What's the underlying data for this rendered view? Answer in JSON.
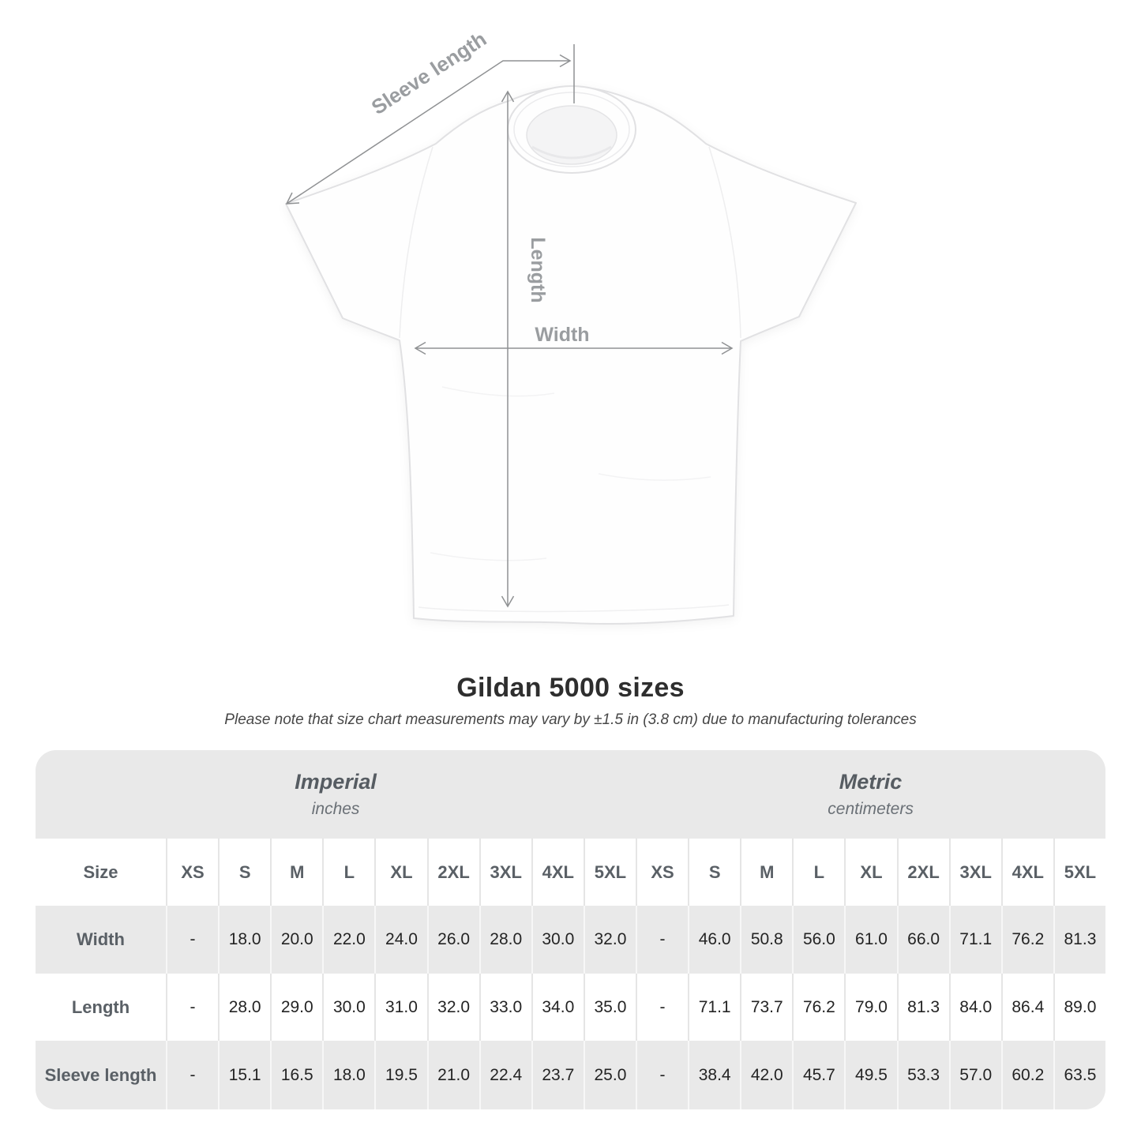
{
  "diagram": {
    "labels": {
      "sleeve_length": "Sleeve length",
      "length": "Length",
      "width": "Width"
    }
  },
  "heading": {
    "title": "Gildan 5000 sizes",
    "subtitle": "Please note that size chart measurements may vary by ±1.5 in (3.8 cm) due to manufacturing tolerances"
  },
  "table": {
    "size_column_header": "Size",
    "unit_groups": [
      {
        "label": "Imperial",
        "sublabel": "inches"
      },
      {
        "label": "Metric",
        "sublabel": "centimeters"
      }
    ],
    "sizes": [
      "XS",
      "S",
      "M",
      "L",
      "XL",
      "2XL",
      "3XL",
      "4XL",
      "5XL"
    ],
    "rows": [
      {
        "label": "Width",
        "imperial": [
          "-",
          "18.0",
          "20.0",
          "22.0",
          "24.0",
          "26.0",
          "28.0",
          "30.0",
          "32.0"
        ],
        "metric": [
          "-",
          "46.0",
          "50.8",
          "56.0",
          "61.0",
          "66.0",
          "71.1",
          "76.2",
          "81.3"
        ]
      },
      {
        "label": "Length",
        "imperial": [
          "-",
          "28.0",
          "29.0",
          "30.0",
          "31.0",
          "32.0",
          "33.0",
          "34.0",
          "35.0"
        ],
        "metric": [
          "-",
          "71.1",
          "73.7",
          "76.2",
          "79.0",
          "81.3",
          "84.0",
          "86.4",
          "89.0"
        ]
      },
      {
        "label": "Sleeve length",
        "imperial": [
          "-",
          "15.1",
          "16.5",
          "18.0",
          "19.5",
          "21.0",
          "22.4",
          "23.7",
          "25.0"
        ],
        "metric": [
          "-",
          "38.4",
          "42.0",
          "45.7",
          "49.5",
          "53.3",
          "57.0",
          "60.2",
          "63.5"
        ]
      }
    ]
  },
  "colors": {
    "table_band_gray": "#e9e9e9",
    "header_text": "#5a6066",
    "value_text": "#242424",
    "annotation_gray": "#8f9193"
  }
}
